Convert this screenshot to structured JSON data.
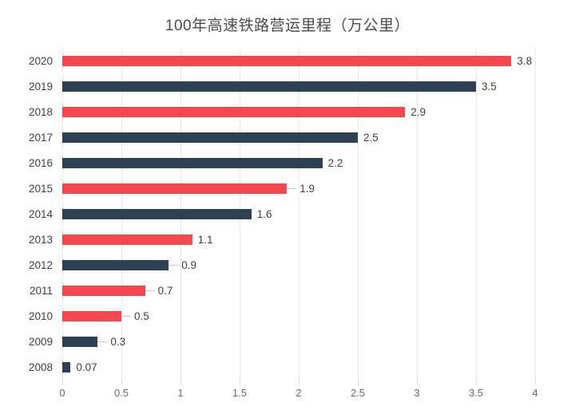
{
  "title": "100年高速铁路营运里程（万公里）",
  "colors": {
    "red": "#f3464e",
    "navy": "#2e4154",
    "gridline": "#e8e8e8",
    "leader_line": "#c6c6c6",
    "title_text": "#4c4c4c",
    "label_text": "#404040",
    "axis_text": "#6b6b6b",
    "background": "#ffffff"
  },
  "chart_data": {
    "type": "bar",
    "orientation": "horizontal",
    "title": "100年高速铁路营运里程（万公里）",
    "categories": [
      "2020",
      "2019",
      "2018",
      "2017",
      "2016",
      "2015",
      "2014",
      "2013",
      "2012",
      "2011",
      "2010",
      "2009",
      "2008"
    ],
    "values": [
      3.8,
      3.5,
      2.9,
      2.5,
      2.2,
      1.9,
      1.6,
      1.1,
      0.9,
      0.7,
      0.5,
      0.3,
      0.07
    ],
    "value_labels": [
      "3.8",
      "3.5",
      "2.9",
      "2.5",
      "2.2",
      "1.9",
      "1.6",
      "1.1",
      "0.9",
      "0.7",
      "0.5",
      "0.3",
      "0.07"
    ],
    "bar_colors": [
      "red",
      "navy",
      "red",
      "navy",
      "navy",
      "red",
      "navy",
      "red",
      "navy",
      "red",
      "red",
      "navy",
      "navy"
    ],
    "leader_lines": [
      false,
      false,
      false,
      false,
      false,
      true,
      false,
      false,
      true,
      true,
      true,
      true,
      false
    ],
    "xlim": [
      0,
      4
    ],
    "x_ticks": [
      0,
      0.5,
      1,
      1.5,
      2,
      2.5,
      3,
      3.5,
      4
    ],
    "x_tick_labels": [
      "0",
      "0.5",
      "1",
      "1.5",
      "2",
      "2.5",
      "3",
      "3.5",
      "4"
    ],
    "grid": true,
    "legend": false
  }
}
